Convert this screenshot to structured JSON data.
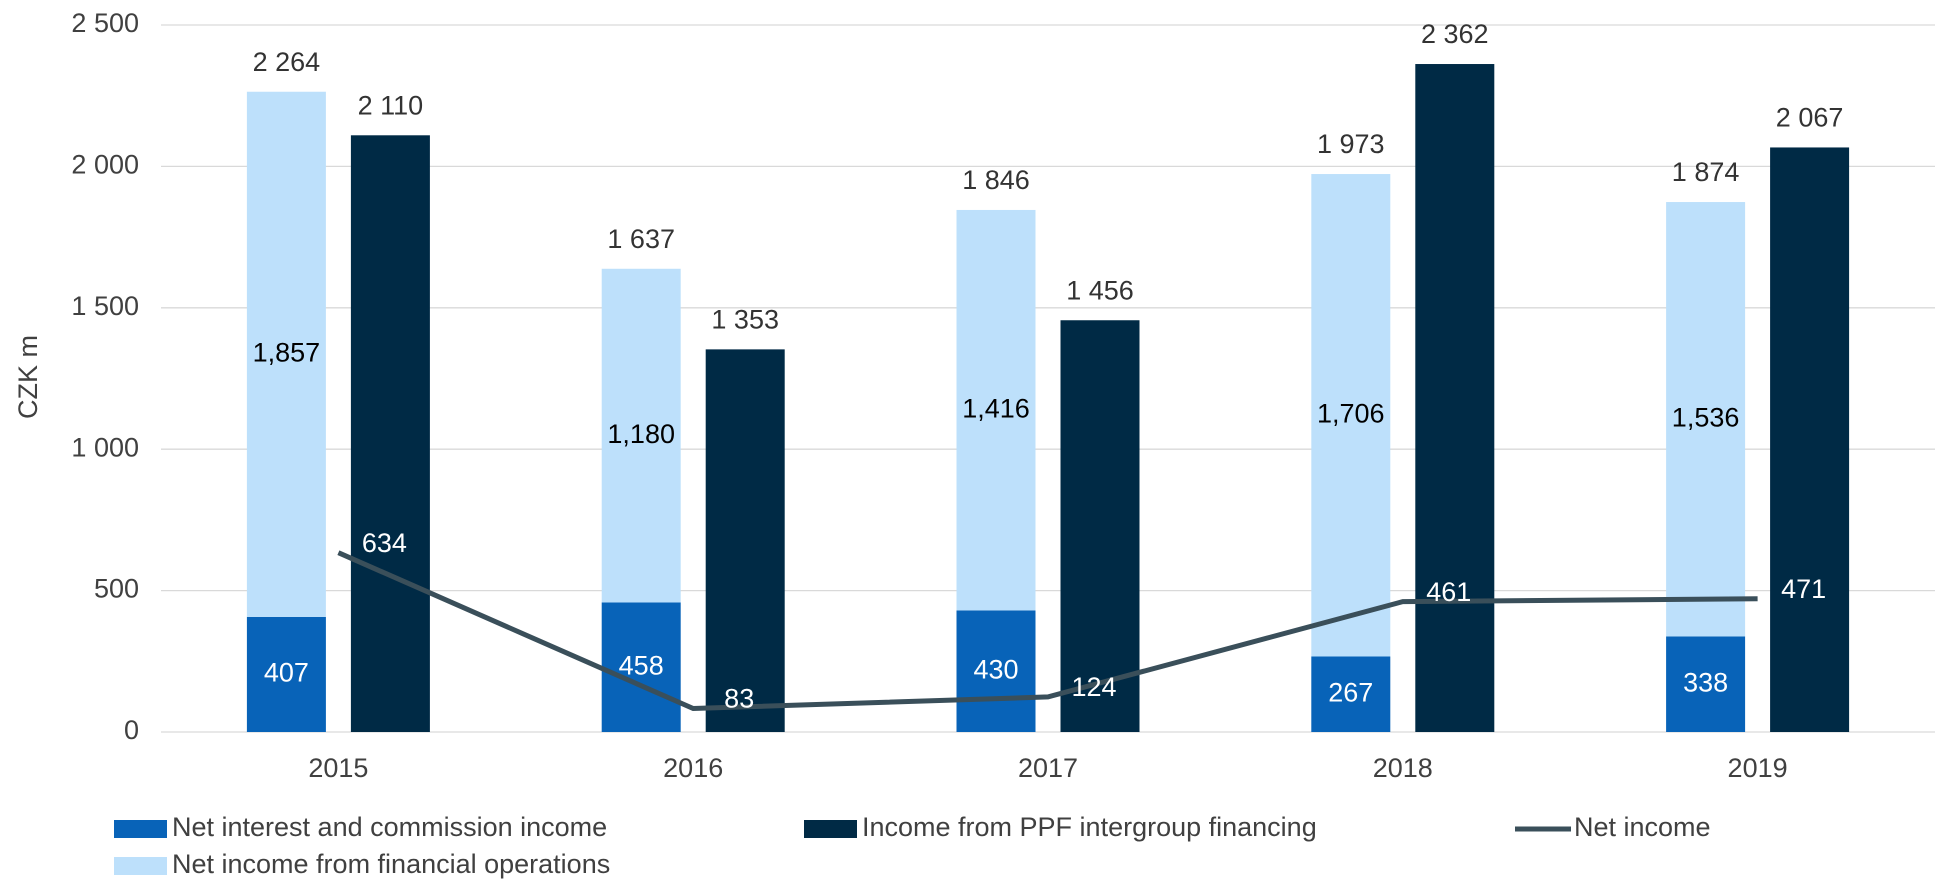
{
  "chart_data": {
    "type": "bar",
    "y_label": "CZK m",
    "categories": [
      "2015",
      "2016",
      "2017",
      "2018",
      "2019"
    ],
    "ylim": [
      0,
      2500
    ],
    "yticks": [
      0,
      500,
      {
        "value": 1000,
        "label": "1 000"
      },
      {
        "value": 1500,
        "label": "1 500"
      },
      {
        "value": 2000,
        "label": "2 000"
      },
      {
        "value": 2500,
        "label": "2 500"
      }
    ],
    "grid": true,
    "series": [
      {
        "name": "Net interest and commission income",
        "type": "stacked-bar",
        "color": "#0863b8",
        "label_color": "#ffffff",
        "values": [
          407,
          458,
          430,
          267,
          338
        ]
      },
      {
        "name": "Net income from financial operations",
        "type": "stacked-bar",
        "color": "#bde0fb",
        "label_color": "#000000",
        "values": [
          1857,
          1180,
          1416,
          1706,
          1536
        ],
        "value_labels": [
          "1,857",
          "1,180",
          "1,416",
          "1,706",
          "1,536"
        ]
      },
      {
        "name": "Income from PPF intergroup financing",
        "type": "bar",
        "color": "#002a45",
        "label_color": "#333333",
        "values": [
          2110,
          1353,
          1456,
          2362,
          2067
        ],
        "value_labels": [
          "2 110",
          "1 353",
          "1 456",
          "2 362",
          "2 067"
        ]
      },
      {
        "name": "Net income",
        "type": "line",
        "color": "#3a4f5a",
        "label_color": "#ffffff",
        "values": [
          634,
          83,
          124,
          461,
          471
        ]
      }
    ],
    "stack_totals": {
      "values": [
        2264,
        1637,
        1846,
        1973,
        1874
      ],
      "value_labels": [
        "2 264",
        "1 637",
        "1 846",
        "1 973",
        "1 874"
      ]
    }
  }
}
